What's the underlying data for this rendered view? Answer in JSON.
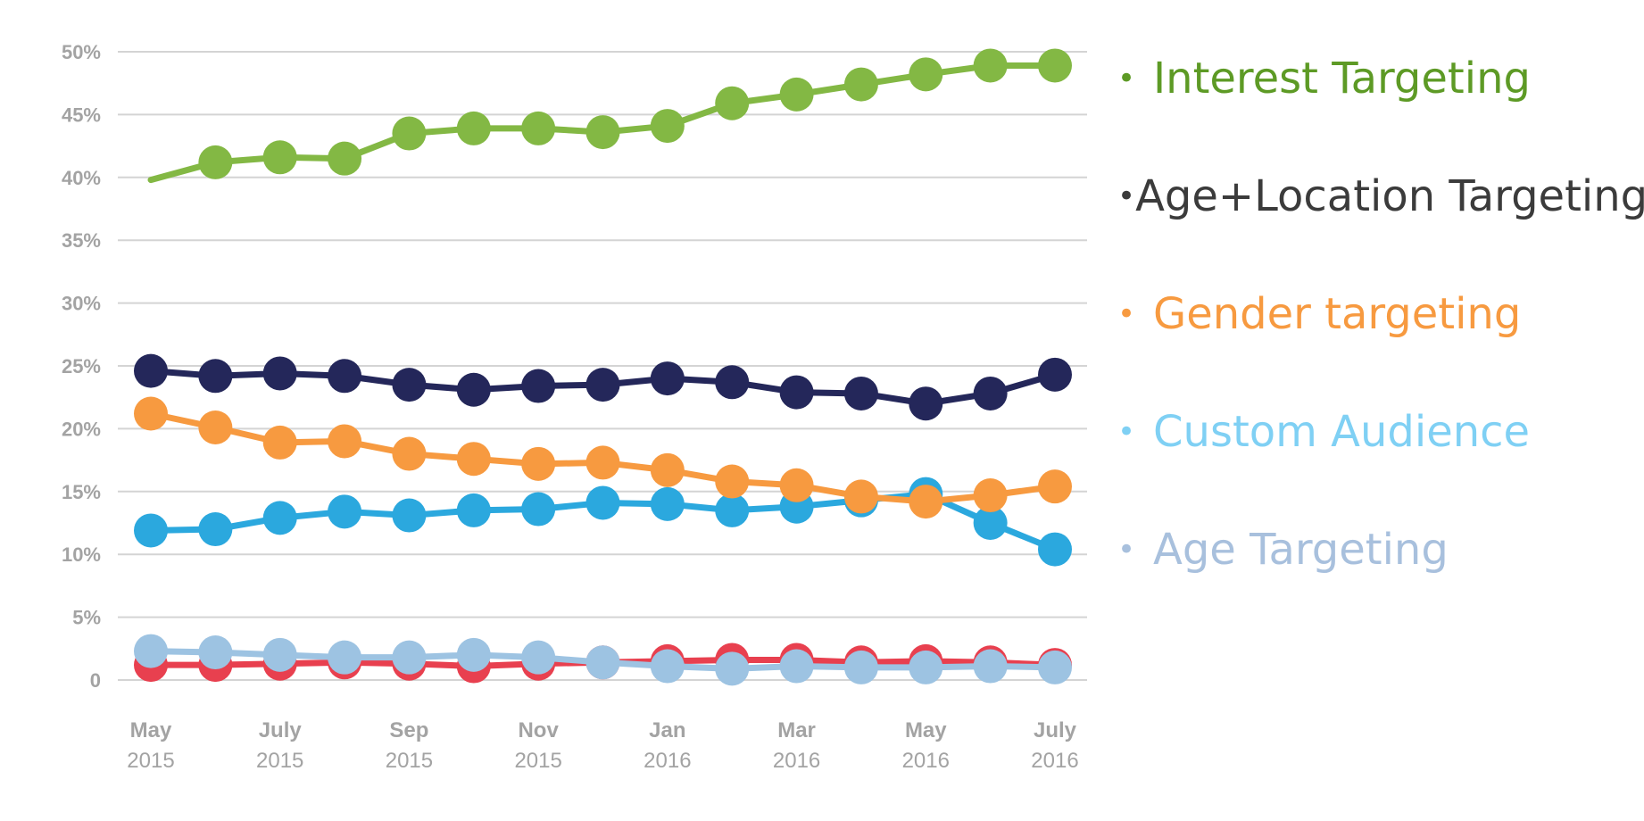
{
  "chart_data": {
    "type": "line",
    "categories": [
      "May 2015",
      "Jun 2015",
      "Jul 2015",
      "Aug 2015",
      "Sep 2015",
      "Oct 2015",
      "Nov 2015",
      "Dec 2015",
      "Jan 2016",
      "Feb 2016",
      "Mar 2016",
      "Apr 2016",
      "May 2016",
      "Jun 2016",
      "Jul 2016"
    ],
    "x_tick_labels": [
      {
        "index": 0,
        "month": "May",
        "year": "2015"
      },
      {
        "index": 2,
        "month": "July",
        "year": "2015"
      },
      {
        "index": 4,
        "month": "Sep",
        "year": "2015"
      },
      {
        "index": 6,
        "month": "Nov",
        "year": "2015"
      },
      {
        "index": 8,
        "month": "Jan",
        "year": "2016"
      },
      {
        "index": 10,
        "month": "Mar",
        "year": "2016"
      },
      {
        "index": 12,
        "month": "May",
        "year": "2016"
      },
      {
        "index": 14,
        "month": "July",
        "year": "2016"
      }
    ],
    "y_ticks": [
      {
        "value": 0,
        "label": "0"
      },
      {
        "value": 5,
        "label": "5%"
      },
      {
        "value": 10,
        "label": "10%"
      },
      {
        "value": 15,
        "label": "15%"
      },
      {
        "value": 20,
        "label": "20%"
      },
      {
        "value": 25,
        "label": "25%"
      },
      {
        "value": 30,
        "label": "30%"
      },
      {
        "value": 35,
        "label": "35%"
      },
      {
        "value": 40,
        "label": "40%"
      },
      {
        "value": 45,
        "label": "45%"
      },
      {
        "value": 50,
        "label": "50%"
      }
    ],
    "ylim": [
      0,
      50
    ],
    "grid": true,
    "legend_position": "right",
    "series": [
      {
        "name": "Red Series",
        "color": "#e8404f",
        "in_legend": false,
        "values": [
          1.2,
          1.2,
          1.3,
          1.4,
          1.3,
          1.1,
          1.3,
          1.4,
          1.5,
          1.6,
          1.6,
          1.4,
          1.5,
          1.4,
          1.2
        ]
      },
      {
        "name": "Age Targeting",
        "color": "#9dc3e2",
        "in_legend": true,
        "legend_color": "#a8c0dd",
        "values": [
          2.3,
          2.2,
          2.0,
          1.8,
          1.8,
          2.0,
          1.8,
          1.4,
          1.1,
          0.9,
          1.1,
          1.0,
          1.0,
          1.1,
          1.0
        ]
      },
      {
        "name": "Custom Audience",
        "color": "#2ba8de",
        "in_legend": true,
        "legend_color": "#7fd0f4",
        "values": [
          11.9,
          12.0,
          12.9,
          13.4,
          13.1,
          13.5,
          13.6,
          14.1,
          14.0,
          13.5,
          13.8,
          14.3,
          14.8,
          12.5,
          10.4
        ]
      },
      {
        "name": "Gender targeting",
        "color": "#f79a40",
        "in_legend": true,
        "legend_color": "#f79a40",
        "values": [
          21.2,
          20.1,
          18.9,
          19.0,
          18.0,
          17.6,
          17.2,
          17.3,
          16.7,
          15.8,
          15.5,
          14.6,
          14.2,
          14.7,
          15.4
        ]
      },
      {
        "name": "Age+Location Targeting",
        "color": "#24275a",
        "in_legend": true,
        "legend_color": "#3b3b3b",
        "values": [
          24.6,
          24.2,
          24.4,
          24.2,
          23.5,
          23.1,
          23.4,
          23.5,
          24.0,
          23.7,
          22.9,
          22.8,
          22.0,
          22.8,
          24.3
        ]
      },
      {
        "name": "Interest Targeting",
        "color": "#83b844",
        "in_legend": true,
        "legend_color": "#5d9a25",
        "first_point_marker": false,
        "values": [
          39.8,
          41.2,
          41.6,
          41.5,
          43.5,
          43.9,
          43.9,
          43.6,
          44.1,
          45.9,
          46.6,
          47.4,
          48.2,
          48.9,
          48.9
        ]
      }
    ]
  },
  "legend": [
    {
      "label": "Interest Targeting",
      "color": "#5d9a25"
    },
    {
      "label": "Age+Location Targeting",
      "color": "#3b3b3b"
    },
    {
      "label": "Gender targeting",
      "color": "#f79a40"
    },
    {
      "label": "Custom Audience",
      "color": "#7fd0f4"
    },
    {
      "label": "Age Targeting",
      "color": "#a8c0dd"
    }
  ],
  "bullet_symbol": "•"
}
